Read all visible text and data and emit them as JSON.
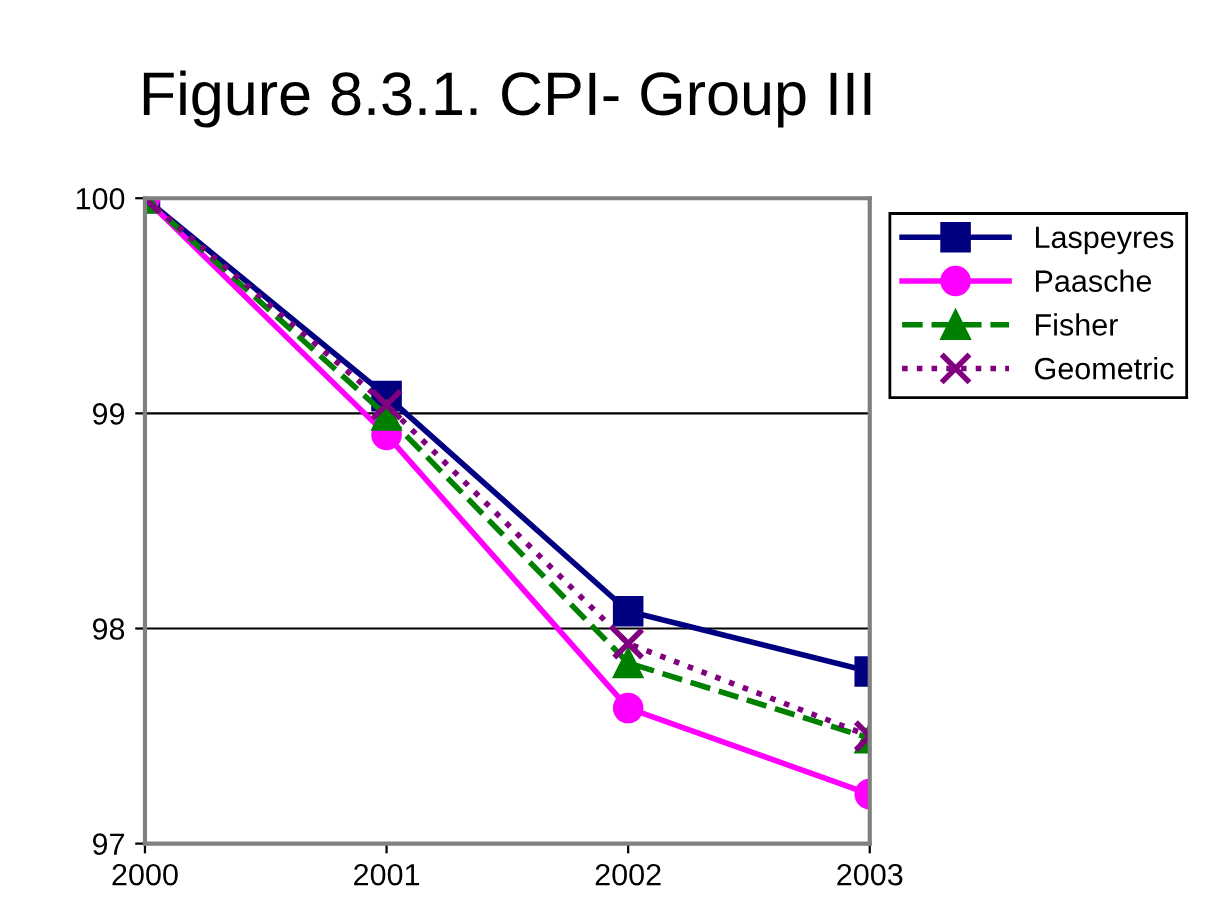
{
  "chart_data": {
    "type": "line",
    "title": "Figure 8.3.1. CPI- Group III",
    "x": [
      2000,
      2001,
      2002,
      2003
    ],
    "series": [
      {
        "name": "Laspeyres",
        "color": "#000080",
        "marker": "square",
        "line_style": "solid",
        "values": [
          100,
          99.08,
          98.08,
          97.8
        ]
      },
      {
        "name": "Paasche",
        "color": "#ff00ff",
        "marker": "circle",
        "line_style": "solid",
        "values": [
          100,
          98.9,
          97.63,
          97.23
        ]
      },
      {
        "name": "Fisher",
        "color": "#008000",
        "marker": "triangle",
        "line_style": "dashed",
        "values": [
          100,
          98.99,
          97.84,
          97.49
        ]
      },
      {
        "name": "Geometric",
        "color": "#800080",
        "marker": "cross",
        "line_style": "dotted",
        "values": [
          100,
          99.04,
          97.93,
          97.5
        ]
      }
    ],
    "xlim": [
      2000,
      2003
    ],
    "xticks": [
      2000,
      2001,
      2002,
      2003
    ],
    "ylim": [
      97,
      100
    ],
    "yticks": [
      97,
      98,
      99,
      100
    ],
    "grid": "y",
    "legend": "top right"
  }
}
